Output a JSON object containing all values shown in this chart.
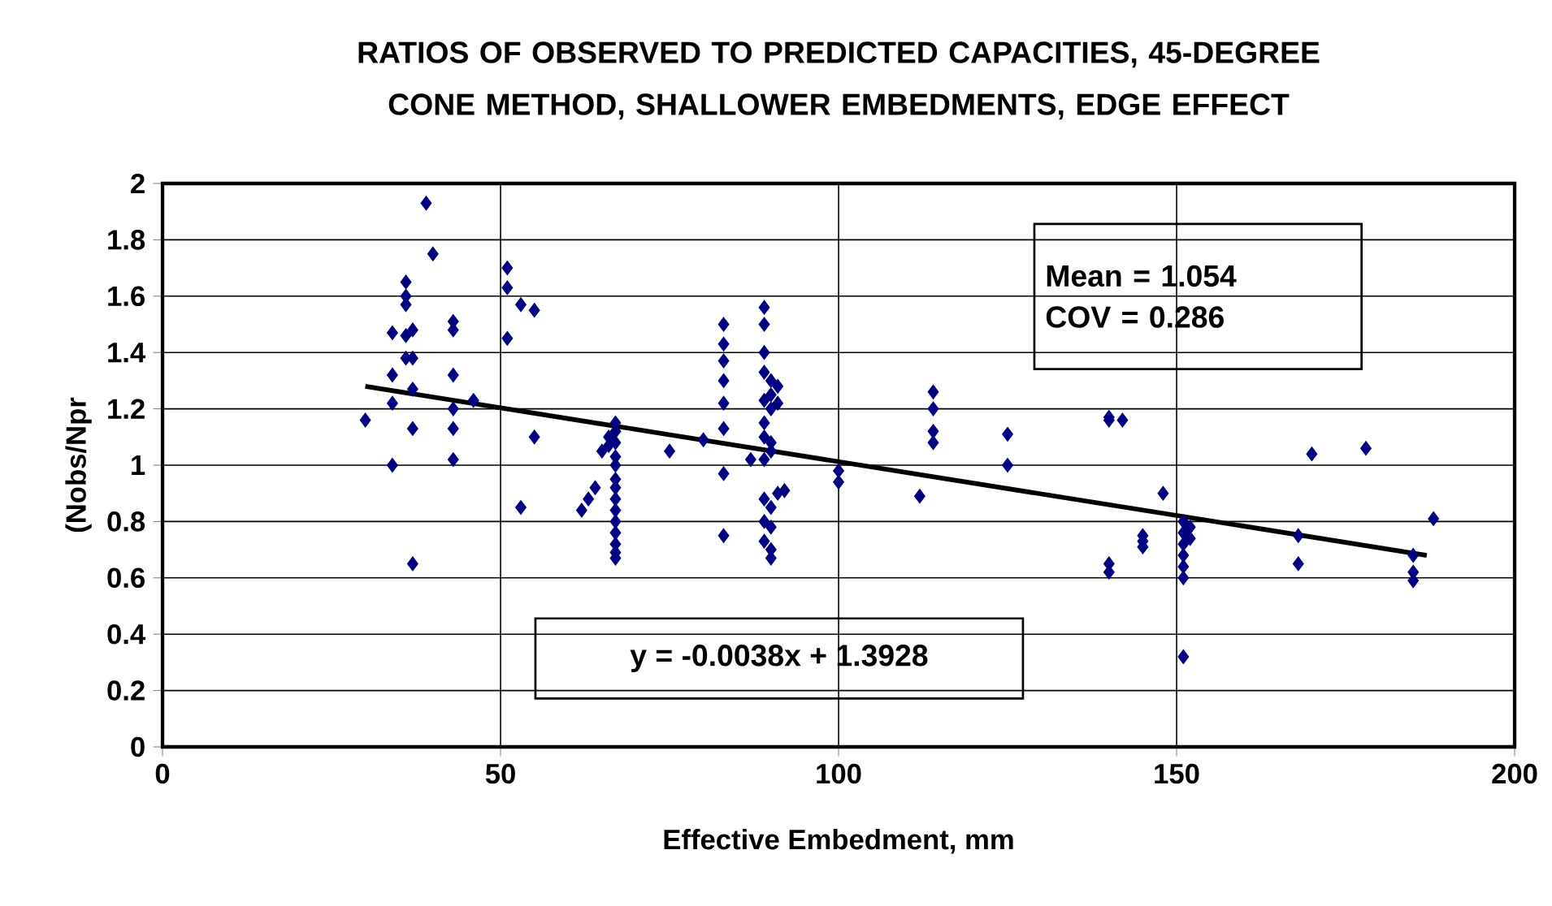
{
  "chart_data": {
    "type": "scatter",
    "title": "RATIOS OF OBSERVED TO PREDICTED CAPACITIES, 45-DEGREE CONE METHOD, SHALLOWER EMBEDMENTS, EDGE EFFECT",
    "xlabel": "Effective Embedment, mm",
    "ylabel": "(Nobs/Npr",
    "xlim": [
      0,
      200
    ],
    "ylim": [
      0,
      2
    ],
    "xticks": [
      0,
      50,
      100,
      150,
      200
    ],
    "yticks": [
      0,
      0.2,
      0.4,
      0.6,
      0.8,
      1,
      1.2,
      1.4,
      1.6,
      1.8,
      2
    ],
    "grid": true,
    "marker": "diamond",
    "annotations": [
      "Mean = 1.054",
      "COV = 0.286",
      "y = -0.0038x + 1.3928"
    ],
    "series": [
      {
        "color": "#000080",
        "x": [
          30,
          34,
          34,
          34,
          34,
          36,
          36,
          36,
          36,
          36,
          37,
          37,
          37,
          37,
          37,
          39,
          40,
          43,
          43,
          43,
          43,
          43,
          43,
          46,
          51,
          51,
          51,
          53,
          53,
          55,
          55,
          62,
          63,
          64,
          65,
          66,
          66,
          67,
          67,
          67,
          67,
          67,
          67,
          67,
          67,
          67,
          67,
          67,
          67,
          67,
          67,
          75,
          80,
          83,
          83,
          83,
          83,
          83,
          83,
          83,
          83,
          87,
          89,
          89,
          89,
          89,
          89,
          89,
          89,
          89,
          89,
          89,
          89,
          90,
          90,
          90,
          90,
          90,
          90,
          90,
          90,
          90,
          91,
          91,
          91,
          92,
          100,
          100,
          112,
          114,
          114,
          114,
          114,
          125,
          125,
          140,
          140,
          140,
          140,
          142,
          145,
          145,
          145,
          148,
          151,
          151,
          151,
          151,
          151,
          151,
          151,
          152,
          152,
          168,
          168,
          170,
          178,
          185,
          185,
          185,
          188
        ],
        "values": [
          1.16,
          1.47,
          1.32,
          1.22,
          1.0,
          1.38,
          1.46,
          1.57,
          1.6,
          1.65,
          1.48,
          1.38,
          1.13,
          0.65,
          1.27,
          1.93,
          1.75,
          1.51,
          1.48,
          1.32,
          1.2,
          1.13,
          1.02,
          1.23,
          1.7,
          1.63,
          1.45,
          1.57,
          0.85,
          1.55,
          1.1,
          0.84,
          0.88,
          0.92,
          1.05,
          1.07,
          1.1,
          1.15,
          1.12,
          1.08,
          1.03,
          1.0,
          0.95,
          0.92,
          0.88,
          0.84,
          0.8,
          0.76,
          0.72,
          0.69,
          0.67,
          1.05,
          1.09,
          1.5,
          1.43,
          1.37,
          1.3,
          1.22,
          1.13,
          0.97,
          0.75,
          1.02,
          1.56,
          1.5,
          1.4,
          1.33,
          1.23,
          1.15,
          1.1,
          1.02,
          0.88,
          0.8,
          0.73,
          1.3,
          1.25,
          1.2,
          1.08,
          1.05,
          0.85,
          0.78,
          0.7,
          0.67,
          1.28,
          1.22,
          0.9,
          0.91,
          0.98,
          0.94,
          0.89,
          1.26,
          1.2,
          1.12,
          1.08,
          1.11,
          1.0,
          1.17,
          1.16,
          0.65,
          0.62,
          1.16,
          0.75,
          0.73,
          0.71,
          0.9,
          0.8,
          0.76,
          0.72,
          0.68,
          0.64,
          0.6,
          0.32,
          0.78,
          0.74,
          0.75,
          0.65,
          1.04,
          1.06,
          0.68,
          0.62,
          0.59,
          0.81
        ]
      },
      {
        "type": "line",
        "color": "#000000",
        "marker": "none",
        "line_style": "solid",
        "x": [
          30,
          187
        ],
        "values": [
          1.28,
          0.68
        ]
      }
    ]
  }
}
